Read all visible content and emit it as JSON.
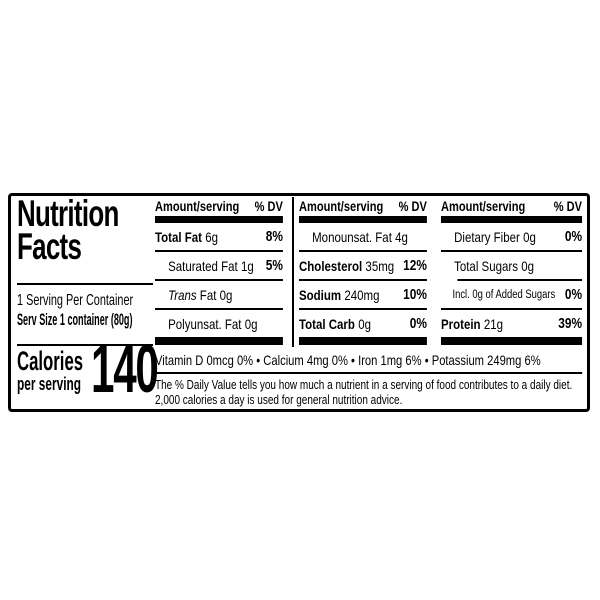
{
  "label": {
    "title_line1": "Nutrition",
    "title_line2": "Facts",
    "servings_per_container": "1 Serving Per Container",
    "serving_size": "Serv Size 1 container (80g)",
    "calories": {
      "label": "Calories",
      "sublabel": "per serving",
      "value": "140"
    },
    "columns": [
      {
        "header_amount": "Amount/serving",
        "header_dv": "% DV",
        "rows": [
          {
            "italic": "",
            "bold": "Total Fat",
            "rest": "",
            "amount": "6g",
            "dv": "8%"
          },
          {
            "italic": "",
            "bold": "",
            "rest": "Saturated Fat",
            "amount": "1g",
            "dv": "5%"
          },
          {
            "italic": "Trans",
            "bold": "",
            "rest": " Fat",
            "amount": "0g",
            "dv": ""
          },
          {
            "italic": "",
            "bold": "",
            "rest": "Polyunsat. Fat",
            "amount": "0g",
            "dv": ""
          }
        ]
      },
      {
        "header_amount": "Amount/serving",
        "header_dv": "% DV",
        "rows": [
          {
            "italic": "",
            "bold": "",
            "rest": "Monounsat. Fat",
            "amount": "4g",
            "dv": ""
          },
          {
            "italic": "",
            "bold": "Cholesterol",
            "rest": "",
            "amount": "35mg",
            "dv": "12%"
          },
          {
            "italic": "",
            "bold": "Sodium",
            "rest": "",
            "amount": "240mg",
            "dv": "10%"
          },
          {
            "italic": "",
            "bold": "Total Carb",
            "rest": "",
            "amount": "0g",
            "dv": "0%"
          }
        ]
      },
      {
        "header_amount": "Amount/serving",
        "header_dv": "% DV",
        "rows": [
          {
            "italic": "",
            "bold": "",
            "rest": "Dietary Fiber",
            "amount": "0g",
            "dv": "0%"
          },
          {
            "italic": "",
            "bold": "",
            "rest": "Total Sugars",
            "amount": "0g",
            "dv": ""
          },
          {
            "italic": "",
            "bold": "",
            "rest": "Incl. 0g of Added Sugars",
            "amount": "",
            "dv": "0%"
          },
          {
            "italic": "",
            "bold": "Protein",
            "rest": "",
            "amount": "21g",
            "dv": "39%"
          }
        ]
      }
    ],
    "micronutrients": "Vitamin D 0mcg 0% • Calcium 4mg 0% • Iron 1mg 6% • Potassium 249mg 6%",
    "footnote": "The % Daily Value tells you how much a nutrient in a serving of food contributes to a daily diet. 2,000 calories a day is used for general nutrition advice.",
    "colors": {
      "ink": "#000000",
      "background": "#ffffff"
    }
  }
}
